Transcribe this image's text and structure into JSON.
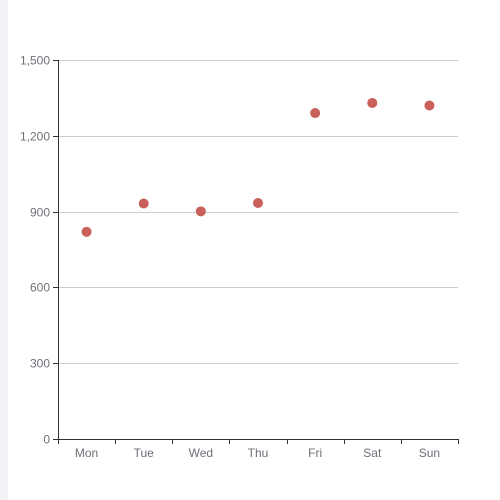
{
  "chart_data": {
    "type": "scatter",
    "categories": [
      "Mon",
      "Tue",
      "Wed",
      "Thu",
      "Fri",
      "Sat",
      "Sun"
    ],
    "values": [
      820,
      932,
      901,
      934,
      1290,
      1330,
      1320
    ],
    "ylim": [
      0,
      1500
    ],
    "yticks": [
      0,
      300,
      600,
      900,
      1200,
      1500
    ],
    "ytick_labels": [
      "0",
      "300",
      "600",
      "900",
      "1,200",
      "1,500"
    ],
    "grid": true,
    "legend": "none",
    "title": "",
    "xlabel": "",
    "ylabel": ""
  },
  "colors": {
    "point": "#c9605c",
    "grid": "#e0e6f1",
    "axis": "#333333",
    "label": "#6e7079"
  }
}
